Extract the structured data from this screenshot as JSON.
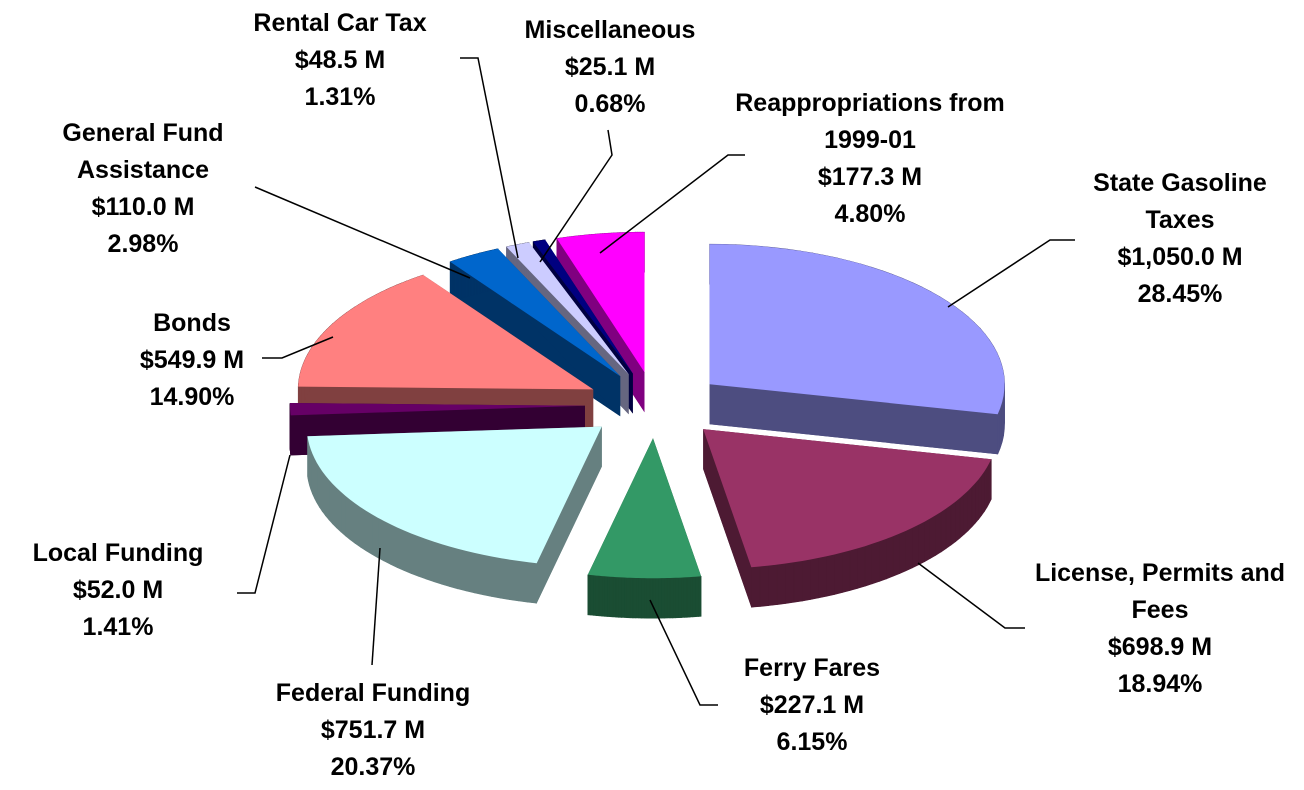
{
  "chart_data": {
    "type": "pie",
    "categories": [
      "State Gasoline Taxes",
      "License, Permits and Fees",
      "Ferry Fares",
      "Federal Funding",
      "Local Funding",
      "Bonds",
      "General Fund Assistance",
      "Rental Car Tax",
      "Miscellaneous",
      "Reappropriations from 1999-01"
    ],
    "values": [
      1050.0,
      698.9,
      227.1,
      751.7,
      52.0,
      549.9,
      110.0,
      48.5,
      25.1,
      177.3
    ],
    "value_labels": [
      "$1,050.0 M",
      "$698.9 M",
      "$227.1 M",
      "$751.7 M",
      "$52.0 M",
      "$549.9 M",
      "$110.0 M",
      "$48.5 M",
      "$25.1 M",
      "$177.3 M"
    ],
    "percent_values": [
      28.45,
      18.94,
      6.15,
      20.37,
      1.41,
      14.9,
      2.98,
      1.31,
      0.68,
      4.8
    ],
    "percent_labels": [
      "28.45%",
      "18.94%",
      "6.15%",
      "20.37%",
      "1.41%",
      "14.90%",
      "2.98%",
      "1.31%",
      "0.68%",
      "4.80%"
    ],
    "colors": [
      "#9999ff",
      "#993366",
      "#339966",
      "#ccffff",
      "#660066",
      "#ff8080",
      "#0066cc",
      "#ccccff",
      "#000080",
      "#ff00ff"
    ]
  }
}
